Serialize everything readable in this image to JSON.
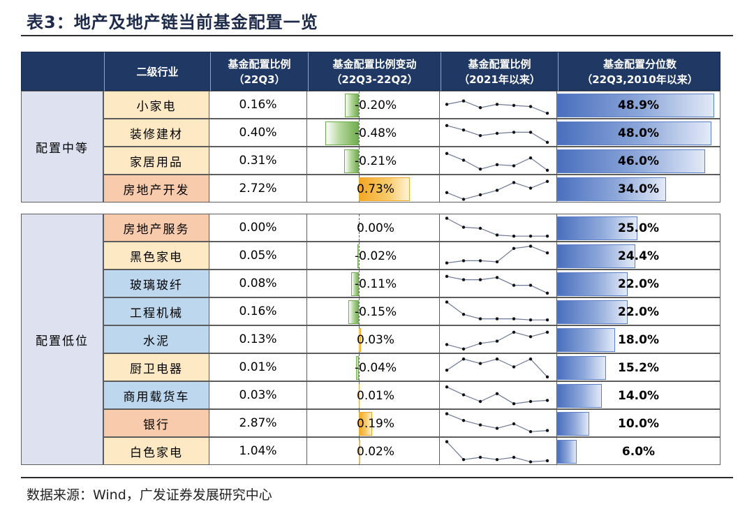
{
  "title": "表3：地产及地产链当前基金配置一览",
  "headers": {
    "industry": "二级行业",
    "ratio_l1": "基金配置比例",
    "ratio_l2": "（22Q3）",
    "change_l1": "基金配置比例变动",
    "change_l2": "（22Q3-22Q2）",
    "trend_l1": "基金配置比例",
    "trend_l2": "（2021年以来）",
    "pct_l1": "基金配置分位数",
    "pct_l2": "（22Q3,2010年以来）"
  },
  "groups": [
    {
      "label": "配置中等",
      "rows": [
        {
          "industry": "小家电",
          "bg": "#fde9c4",
          "ratio": "0.16%",
          "change": -0.2,
          "change_text": "-0.20%",
          "percentile": 48.9,
          "pct_text": "48.9%",
          "trend": [
            0.55,
            0.7,
            0.4,
            0.55,
            0.5,
            0.45,
            0.15
          ]
        },
        {
          "industry": "装修建材",
          "bg": "#fde9c4",
          "ratio": "0.40%",
          "change": -0.48,
          "change_text": "-0.48%",
          "percentile": 48.0,
          "pct_text": "48.0%",
          "trend": [
            0.85,
            0.65,
            0.4,
            0.5,
            0.55,
            0.55,
            0.1
          ]
        },
        {
          "industry": "家居用品",
          "bg": "#fde9c4",
          "ratio": "0.31%",
          "change": -0.21,
          "change_text": "-0.21%",
          "percentile": 46.0,
          "pct_text": "46.0%",
          "trend": [
            0.85,
            0.55,
            0.15,
            0.35,
            0.3,
            0.65,
            0.1
          ]
        },
        {
          "industry": "房地产开发",
          "bg": "#f8cbad",
          "ratio": "2.72%",
          "change": 0.73,
          "change_text": "0.73%",
          "percentile": 34.0,
          "pct_text": "34.0%",
          "trend": [
            0.35,
            0.05,
            0.25,
            0.45,
            0.8,
            0.55,
            0.85
          ]
        }
      ]
    },
    {
      "label": "配置低位",
      "rows": [
        {
          "industry": "房地产服务",
          "bg": "#f8cbad",
          "ratio": "0.00%",
          "change": 0.0,
          "change_text": "0.00%",
          "percentile": 25.0,
          "pct_text": "25.0%",
          "trend": [
            0.95,
            0.55,
            0.5,
            0.2,
            0.15,
            0.15,
            0.15
          ]
        },
        {
          "industry": "黑色家电",
          "bg": "#fde9c4",
          "ratio": "0.05%",
          "change": -0.02,
          "change_text": "-0.02%",
          "percentile": 24.4,
          "pct_text": "24.4%",
          "trend": [
            0.2,
            0.3,
            0.3,
            0.25,
            0.85,
            0.95,
            0.65
          ]
        },
        {
          "industry": "玻璃玻纤",
          "bg": "#bdd7ee",
          "ratio": "0.08%",
          "change": -0.11,
          "change_text": "-0.11%",
          "percentile": 22.0,
          "pct_text": "22.0%",
          "trend": [
            0.85,
            0.7,
            0.7,
            0.8,
            0.45,
            0.45,
            0.1
          ]
        },
        {
          "industry": "工程机械",
          "bg": "#bdd7ee",
          "ratio": "0.16%",
          "change": -0.15,
          "change_text": "-0.15%",
          "percentile": 22.0,
          "pct_text": "22.0%",
          "trend": [
            0.95,
            0.4,
            0.2,
            0.2,
            0.2,
            0.15,
            0.15
          ]
        },
        {
          "industry": "水泥",
          "bg": "#bdd7ee",
          "ratio": "0.13%",
          "change": 0.03,
          "change_text": "0.03%",
          "percentile": 18.0,
          "pct_text": "18.0%",
          "trend": [
            0.3,
            0.1,
            0.35,
            0.45,
            0.85,
            0.65,
            0.85
          ]
        },
        {
          "industry": "厨卫电器",
          "bg": "#fde9c4",
          "ratio": "0.01%",
          "change": -0.04,
          "change_text": "-0.04%",
          "percentile": 15.2,
          "pct_text": "15.2%",
          "trend": [
            0.4,
            0.9,
            0.7,
            0.9,
            0.55,
            0.9,
            0.1
          ]
        },
        {
          "industry": "商用载货车",
          "bg": "#bdd7ee",
          "ratio": "0.03%",
          "change": 0.01,
          "change_text": "0.01%",
          "percentile": 14.0,
          "pct_text": "14.0%",
          "trend": [
            0.9,
            0.55,
            0.25,
            0.6,
            0.15,
            0.25,
            0.3
          ]
        },
        {
          "industry": "银行",
          "bg": "#f8cbad",
          "ratio": "2.87%",
          "change": 0.19,
          "change_text": "0.19%",
          "percentile": 10.0,
          "pct_text": "10.0%",
          "trend": [
            0.95,
            0.65,
            0.45,
            0.3,
            0.5,
            0.15,
            0.2
          ]
        },
        {
          "industry": "白色家电",
          "bg": "#fde9c4",
          "ratio": "1.04%",
          "change": 0.02,
          "change_text": "0.02%",
          "percentile": 6.0,
          "pct_text": "6.0%",
          "trend": [
            0.95,
            0.15,
            0.25,
            0.15,
            0.25,
            0.05,
            0.1
          ]
        }
      ]
    }
  ],
  "source": "数据来源：Wind，广发证券发展研究中心"
}
